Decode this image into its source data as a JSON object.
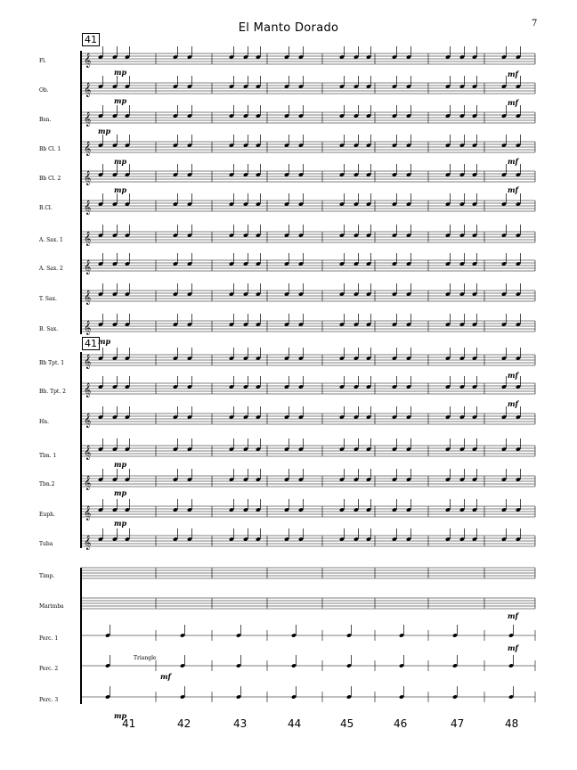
{
  "title": "El Manto Dorado",
  "page_number": "7",
  "rehearsal_mark": "41",
  "instruments": [
    "Fl.",
    "Ob.",
    "Bsn.",
    "Bb Cl. 1",
    "Bb Cl. 2",
    "B.Cl.",
    "A. Sax. 1",
    "A. Sax. 2",
    "T. Sax.",
    "B. Sax.",
    "Bb Tpt. 1",
    "Bb. Tpt. 2",
    "Hn.",
    "Tbn. 1",
    "Tbn.2",
    "Euph.",
    "Tuba",
    "Timp.",
    "Marimba",
    "Perc. 1",
    "Perc. 2",
    "Perc. 3"
  ],
  "measure_numbers": [
    "41",
    "42",
    "43",
    "44",
    "45",
    "46",
    "47",
    "48"
  ],
  "dynamics": {
    "mp": "mp",
    "mf": "mf"
  },
  "text_annotations": {
    "triangle": "Triangle"
  }
}
